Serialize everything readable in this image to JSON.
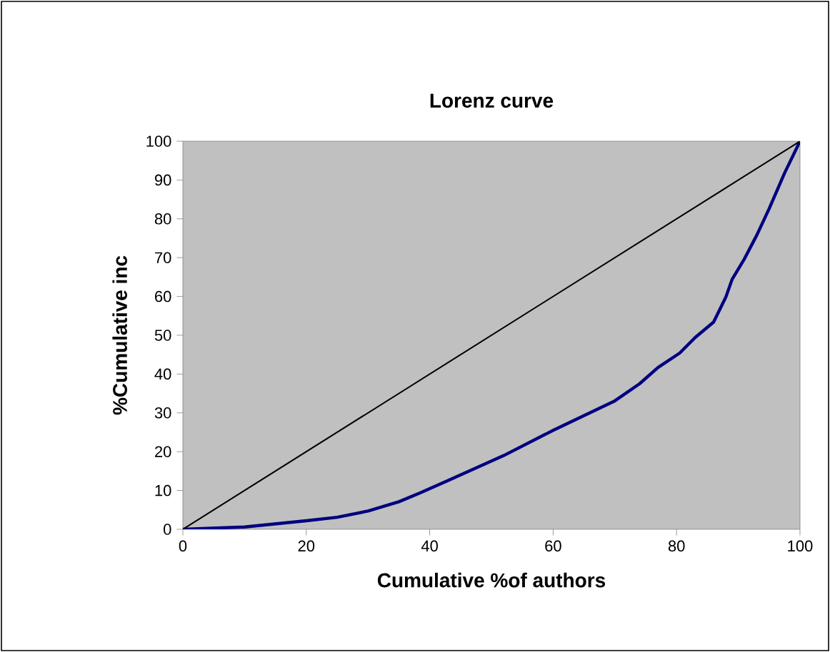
{
  "chart_data": {
    "type": "line",
    "title": "Lorenz curve",
    "xlabel": "Cumulative %of authors",
    "ylabel": "%Cumulative inc",
    "xlim": [
      0,
      100
    ],
    "ylim": [
      0,
      100
    ],
    "xticks": [
      0,
      20,
      40,
      60,
      80,
      100
    ],
    "yticks": [
      0,
      10,
      20,
      30,
      40,
      50,
      60,
      70,
      80,
      90,
      100
    ],
    "grid": false,
    "marker": "none",
    "line_style": "solid",
    "series": [
      {
        "color": "#000080",
        "x": [
          0,
          10,
          20,
          25,
          30,
          35,
          38.5,
          43,
          52,
          60,
          70,
          74,
          77,
          80.5,
          83,
          86,
          88,
          89,
          91,
          93,
          95,
          97.5,
          100
        ],
        "values": [
          0,
          0.6,
          2.2,
          3.1,
          4.7,
          7.1,
          9.4,
          12.6,
          19,
          25.5,
          33.1,
          37.5,
          41.7,
          45.4,
          49.4,
          53.4,
          59.9,
          64.4,
          69.7,
          75.8,
          82.6,
          91.8,
          100
        ]
      },
      {
        "color": "#000000",
        "x": [
          0,
          100
        ],
        "values": [
          0,
          100
        ]
      }
    ]
  }
}
